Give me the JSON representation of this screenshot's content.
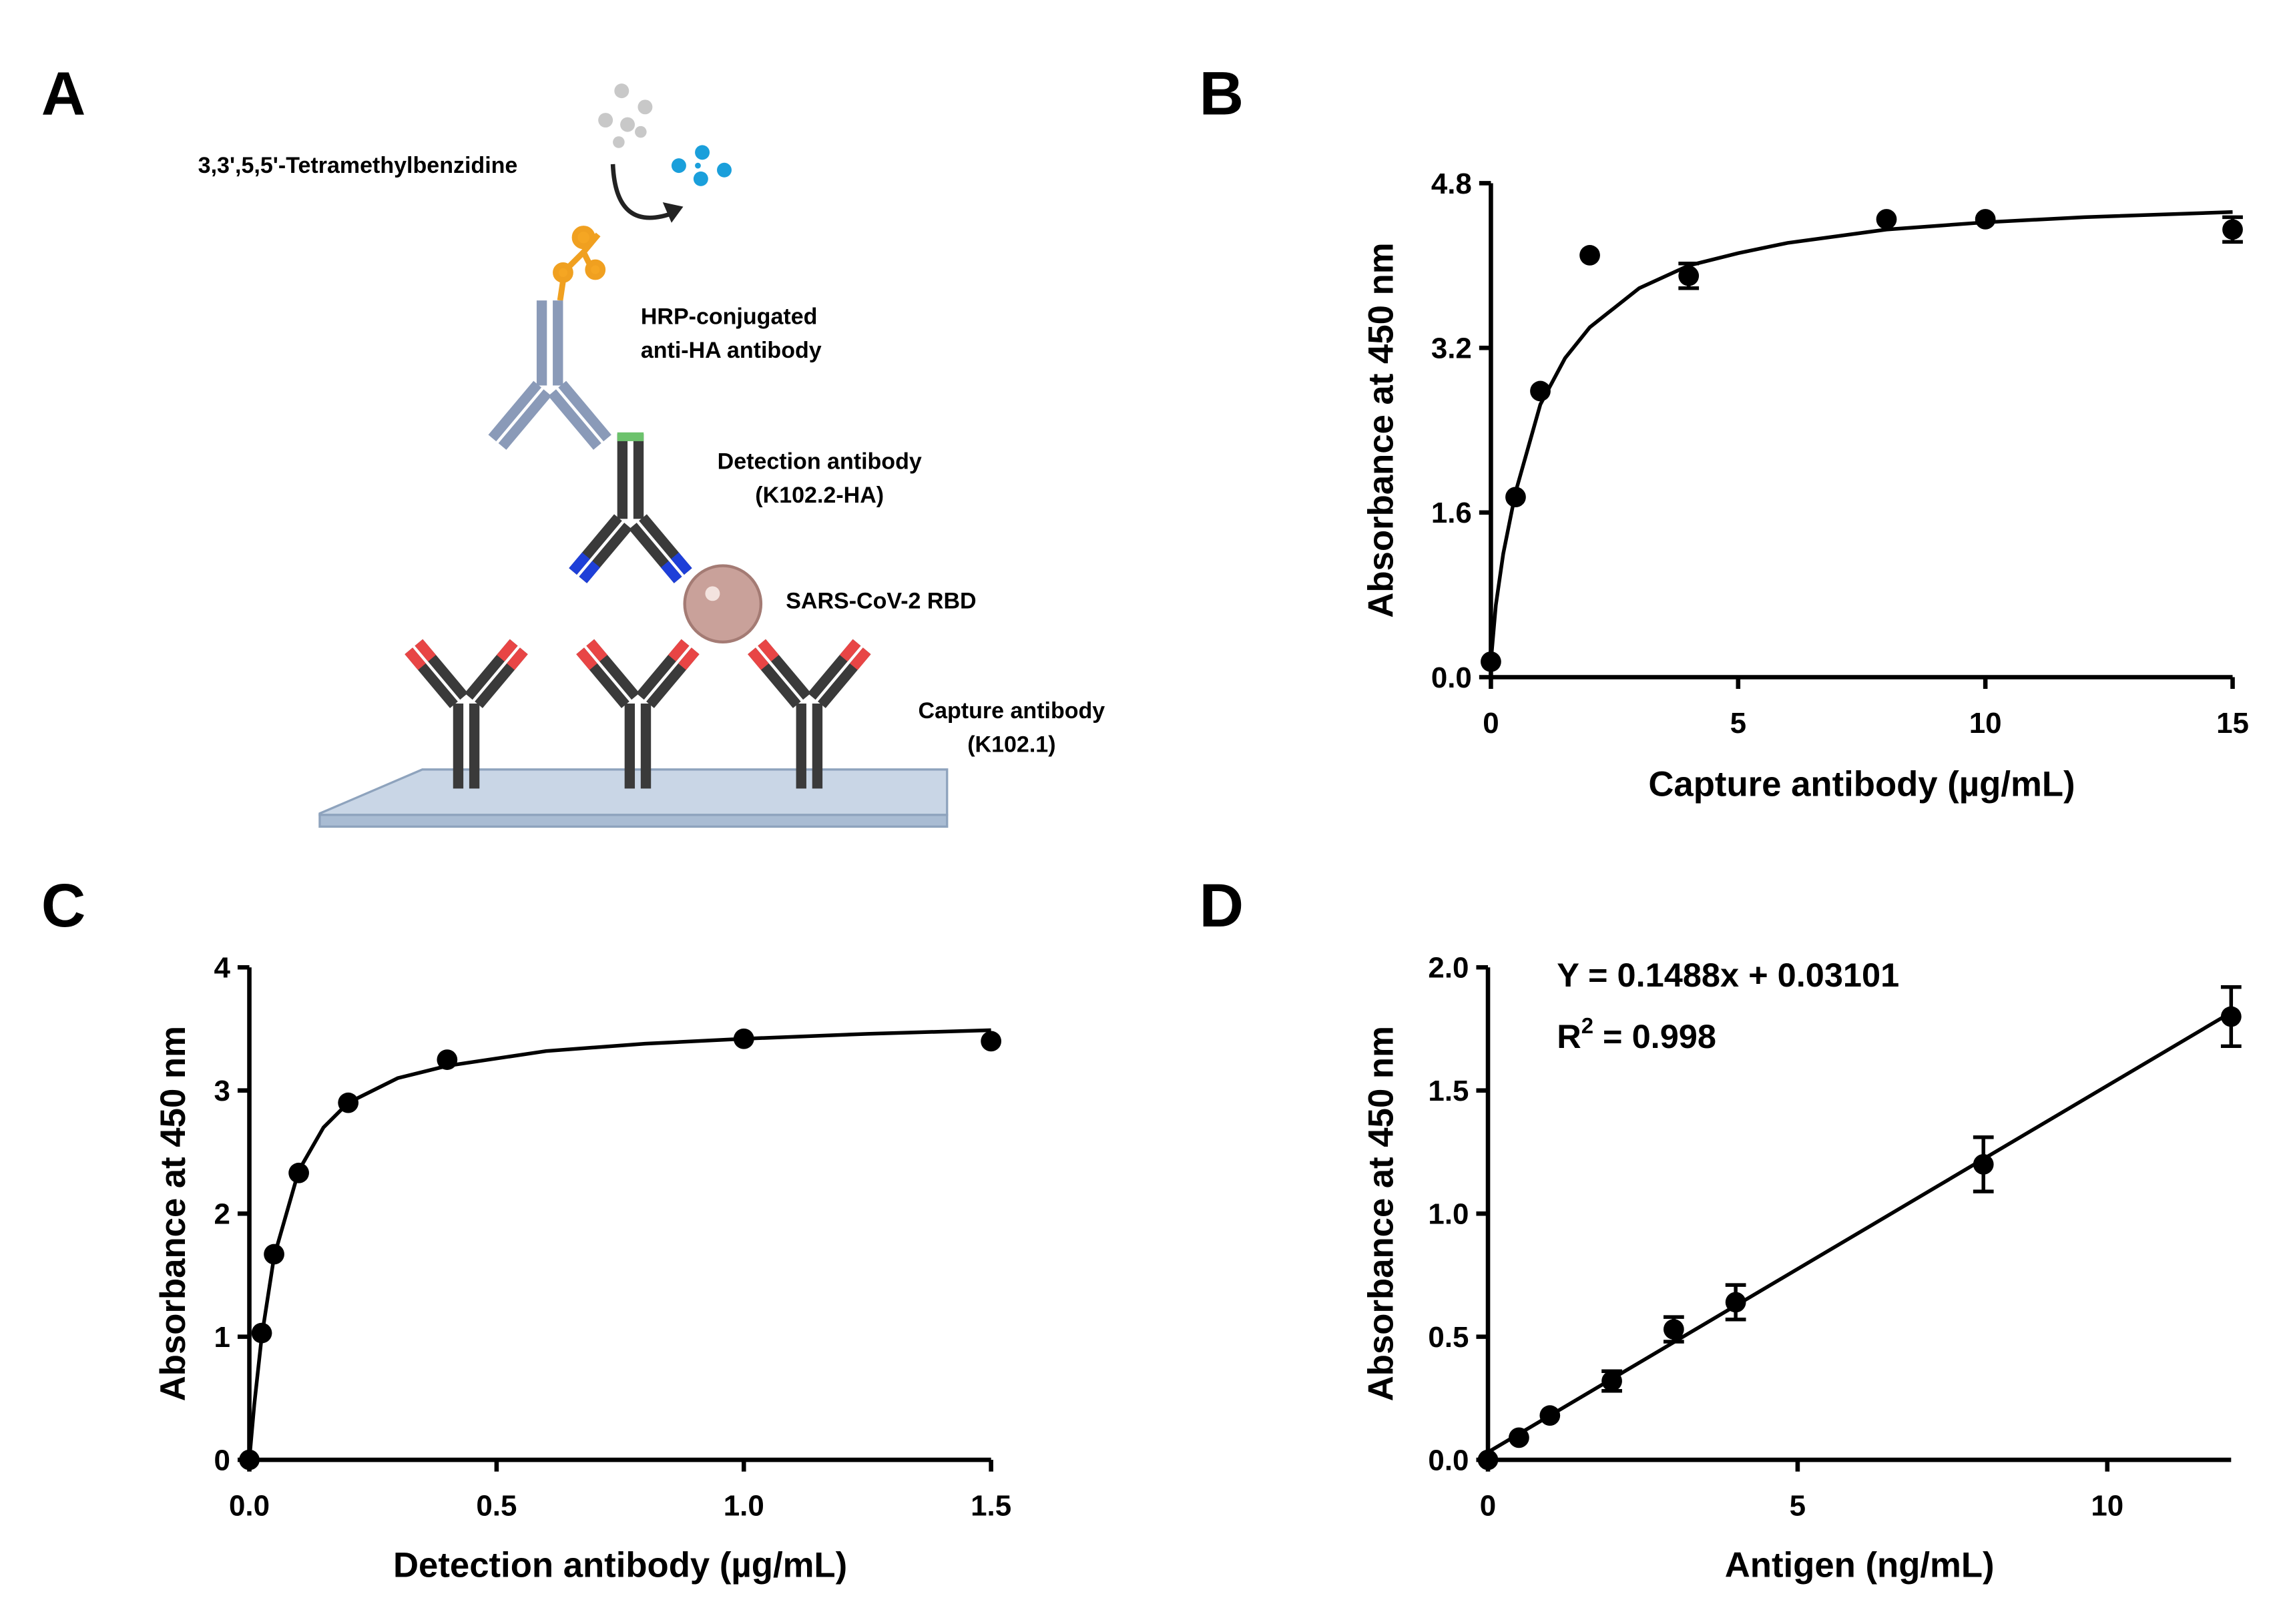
{
  "diagram": {
    "panel_label": "A",
    "substrate": "3,3',5,5'-Tetramethylbenzidine",
    "hrp_line1": "HRP-conjugated",
    "hrp_line2": "anti-HA antibody",
    "detection_line1": "Detection antibody",
    "detection_line2": "(K102.2-HA)",
    "antigen": "SARS-CoV-2 RBD",
    "capture_line1": "Capture antibody",
    "capture_line2": "(K102.1)"
  },
  "chart_data": [
    {
      "type": "scatter",
      "panel_label": "B",
      "xlabel": "Capture antibody (µg/mL)",
      "ylabel": "Absorbance at 450 nm",
      "x": [
        0,
        0.5,
        1,
        2,
        4,
        8,
        10,
        15
      ],
      "values": [
        0.15,
        1.75,
        2.78,
        4.1,
        3.9,
        4.45,
        4.45,
        4.35
      ],
      "errors": [
        null,
        null,
        null,
        null,
        0.12,
        null,
        null,
        0.12
      ],
      "curve": {
        "x": [
          0,
          0.1,
          0.25,
          0.5,
          1,
          1.5,
          2,
          3,
          4,
          5,
          6,
          8,
          10,
          12,
          15
        ],
        "values": [
          0.15,
          0.7,
          1.2,
          1.8,
          2.65,
          3.1,
          3.4,
          3.78,
          4.0,
          4.12,
          4.22,
          4.35,
          4.42,
          4.47,
          4.52
        ]
      },
      "xlim": [
        0,
        15
      ],
      "xticks": [
        0,
        5,
        10,
        15
      ],
      "ylim": [
        0,
        4.8
      ],
      "yticks": [
        {
          "value": 0,
          "label": "0.0"
        },
        1.6,
        3.2,
        4.8
      ],
      "color": "#000000"
    },
    {
      "type": "scatter",
      "panel_label": "C",
      "xlabel": "Detection antibody (µg/mL)",
      "ylabel": "Absorbance at 450 nm",
      "x": [
        0,
        0.025,
        0.05,
        0.1,
        0.2,
        0.4,
        1.0,
        1.5
      ],
      "values": [
        0,
        1.03,
        1.67,
        2.33,
        2.9,
        3.25,
        3.42,
        3.4
      ],
      "curve": {
        "x": [
          0,
          0.01,
          0.025,
          0.05,
          0.1,
          0.15,
          0.2,
          0.3,
          0.4,
          0.6,
          0.8,
          1.0,
          1.25,
          1.5
        ],
        "values": [
          0,
          0.45,
          1.0,
          1.65,
          2.35,
          2.7,
          2.9,
          3.1,
          3.2,
          3.32,
          3.38,
          3.42,
          3.46,
          3.49
        ]
      },
      "xlim": [
        0,
        1.5
      ],
      "xticks": [
        {
          "value": 0,
          "label": "0.0"
        },
        0.5,
        {
          "value": 1,
          "label": "1.0"
        },
        1.5
      ],
      "ylim": [
        0,
        4
      ],
      "yticks": [
        0,
        1,
        2,
        3,
        4
      ],
      "color": "#000000"
    },
    {
      "type": "scatter",
      "panel_label": "D",
      "xlabel": "Antigen (ng/mL)",
      "ylabel": "Absorbance at 450 nm",
      "x": [
        0,
        0.5,
        1,
        2,
        3,
        4,
        8,
        12
      ],
      "values": [
        0,
        0.09,
        0.18,
        0.32,
        0.53,
        0.64,
        1.2,
        1.8
      ],
      "errors": [
        null,
        null,
        null,
        0.04,
        0.05,
        0.07,
        0.11,
        0.12
      ],
      "curve": {
        "x": [
          0,
          12
        ],
        "values": [
          0.031,
          1.817
        ]
      },
      "equation": "Y = 0.1488x + 0.03101",
      "r2": [
        "R",
        "2",
        " = 0.998"
      ],
      "xlim": [
        0,
        12
      ],
      "xticks": [
        0,
        5,
        10
      ],
      "ylim": [
        0,
        2
      ],
      "yticks": [
        {
          "value": 0,
          "label": "0.0"
        },
        0.5,
        {
          "value": 1,
          "label": "1.0"
        },
        1.5,
        {
          "value": 2,
          "label": "2.0"
        }
      ],
      "color": "#000000"
    }
  ]
}
